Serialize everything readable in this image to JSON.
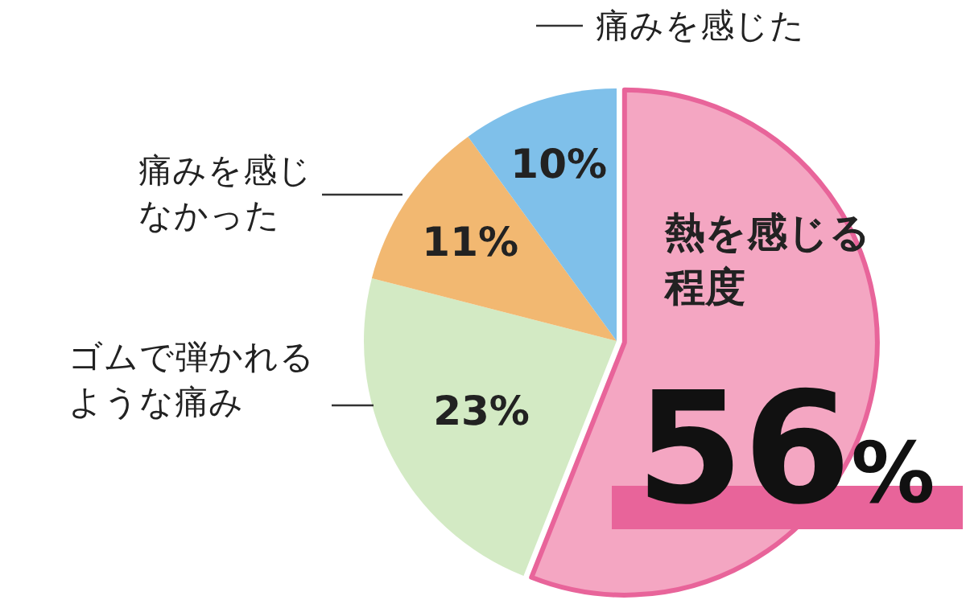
{
  "chart_data": {
    "type": "pie",
    "categories": [
      "熱を感じる程度",
      "ゴムで弾かれるような痛み",
      "痛みを感じなかった",
      "痛みを感じた"
    ],
    "values": [
      56,
      23,
      11,
      10
    ],
    "value_labels": [
      "56%",
      "23%",
      "11%",
      "10%"
    ],
    "colors": [
      "#f4a6c2",
      "#d3eac4",
      "#f2b871",
      "#7fc0ea"
    ],
    "legend": false
  }
}
